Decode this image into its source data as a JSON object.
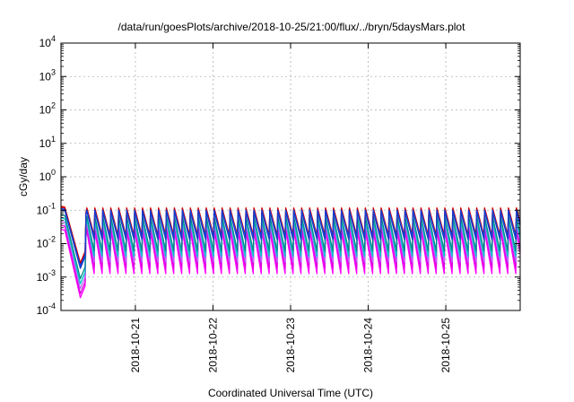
{
  "chart_data": {
    "type": "line",
    "title": "/data/run/goesPlots/archive/2018-10-25/21:00/flux/../bryn/5daysMars.plot",
    "xlabel": "Coordinated Universal Time (UTC)",
    "ylabel": "cGy/day",
    "yscale": "log",
    "ylim_exponents": [
      -4,
      4
    ],
    "y_ticks": [
      {
        "base": "10",
        "exp": "-4"
      },
      {
        "base": "10",
        "exp": "-3"
      },
      {
        "base": "10",
        "exp": "-2"
      },
      {
        "base": "10",
        "exp": "-1"
      },
      {
        "base": "10",
        "exp": "0"
      },
      {
        "base": "10",
        "exp": "1"
      },
      {
        "base": "10",
        "exp": "2"
      },
      {
        "base": "10",
        "exp": "3"
      },
      {
        "base": "10",
        "exp": "4"
      }
    ],
    "xlim": [
      "2018-10-20T01:00",
      "2018-10-25T23:00"
    ],
    "x_ticks": [
      "2018-10-21",
      "2018-10-22",
      "2018-10-23",
      "2018-10-24",
      "2018-10-25"
    ],
    "grid": true,
    "legend": "none",
    "series": [
      {
        "color": "#ff00ff",
        "dip_min_exp": -3.62,
        "low_exp": -2.9,
        "high_exp": -1.62,
        "recovery_start_exp": -1.8
      },
      {
        "color": "#dd00dd",
        "dip_min_exp": -3.5,
        "low_exp": -2.72,
        "high_exp": -1.5,
        "recovery_start_exp": -1.7
      },
      {
        "color": "#bb66ff",
        "dip_min_exp": -3.35,
        "low_exp": -2.55,
        "high_exp": -1.38,
        "recovery_start_exp": -1.58
      },
      {
        "color": "#00c8c8",
        "dip_min_exp": -3.2,
        "low_exp": -2.38,
        "high_exp": -1.28,
        "recovery_start_exp": -1.45
      },
      {
        "color": "#008a8a",
        "dip_min_exp": -3.05,
        "low_exp": -2.22,
        "high_exp": -1.18,
        "recovery_start_exp": -1.35
      },
      {
        "color": "#ff0000",
        "dip_min_exp": -2.58,
        "low_exp": -1.75,
        "high_exp": -0.93,
        "recovery_start_exp": -1.05
      },
      {
        "color": "#b00000",
        "dip_min_exp": -2.62,
        "low_exp": -1.8,
        "high_exp": -0.96,
        "recovery_start_exp": -1.08
      },
      {
        "color": "#0044ff",
        "dip_min_exp": -2.68,
        "low_exp": -1.82,
        "high_exp": -1.0,
        "recovery_start_exp": -1.1
      },
      {
        "color": "#1a3cc8",
        "dip_min_exp": -2.74,
        "low_exp": -1.88,
        "high_exp": -1.04,
        "recovery_start_exp": -1.14
      }
    ],
    "sawtooth_period_hours": 2.46,
    "dip_time": "2018-10-20T07:00",
    "recovery_time": "2018-10-20T08:45"
  }
}
